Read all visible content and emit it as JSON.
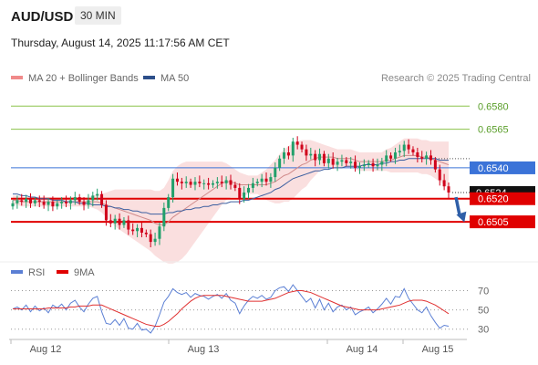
{
  "header": {
    "pair": "AUD/USD",
    "timeframe": "30 MIN",
    "datetime": "Thursday, August 14, 2025 11:17:56 AM CET"
  },
  "legend": {
    "ma20_label": "MA 20 + Bollinger Bands",
    "ma50_label": "MA 50",
    "credit": "Research © 2025 Trading Central",
    "rsi_label": "RSI",
    "ma9_label": "9MA"
  },
  "colors": {
    "candle_up": "#22a06b",
    "candle_down": "#d0021b",
    "bollinger_fill": "#f7c9c9",
    "ma20": "#d08a8a",
    "ma50": "#3c5fa0",
    "resistance": "#8bc34a",
    "pivot": "#3b73d8",
    "support": "#e00000",
    "last_price": "#111111",
    "rsi": "#5b7fd4",
    "rsi_ma": "#e03030",
    "arrow": "#2f5fa8"
  },
  "chart_data": [
    {
      "type": "candlestick",
      "x_labels": [
        "Aug 12",
        "Aug 13",
        "Aug 14",
        "Aug 15"
      ],
      "ylim": [
        0.6482,
        0.6592
      ],
      "levels": [
        {
          "role": "resistance",
          "value": 0.658,
          "label": "0.6580"
        },
        {
          "role": "resistance",
          "value": 0.6565,
          "label": "0.6565"
        },
        {
          "role": "pivot",
          "value": 0.654,
          "label": "0.6540"
        },
        {
          "role": "last",
          "value": 0.6524,
          "label": "0.6524"
        },
        {
          "role": "support",
          "value": 0.652,
          "label": "0.6520"
        },
        {
          "role": "support",
          "value": 0.6505,
          "label": "0.6505"
        }
      ],
      "closes": [
        0.6517,
        0.6519,
        0.6518,
        0.652,
        0.6517,
        0.6519,
        0.6518,
        0.6516,
        0.6518,
        0.6515,
        0.6517,
        0.6518,
        0.6517,
        0.6519,
        0.6521,
        0.6518,
        0.6516,
        0.6519,
        0.6522,
        0.6523,
        0.6516,
        0.6506,
        0.6504,
        0.6507,
        0.6503,
        0.6506,
        0.65,
        0.6499,
        0.6501,
        0.6498,
        0.6497,
        0.6492,
        0.6494,
        0.6502,
        0.6514,
        0.6521,
        0.6533,
        0.6531,
        0.653,
        0.6531,
        0.6529,
        0.6531,
        0.653,
        0.653,
        0.6529,
        0.653,
        0.6531,
        0.653,
        0.6532,
        0.6529,
        0.6527,
        0.652,
        0.6524,
        0.6527,
        0.653,
        0.6531,
        0.6533,
        0.6531,
        0.6534,
        0.654,
        0.6546,
        0.655,
        0.6548,
        0.6557,
        0.6555,
        0.6552,
        0.6548,
        0.6549,
        0.6545,
        0.6549,
        0.6543,
        0.6546,
        0.6542,
        0.6544,
        0.6545,
        0.6543,
        0.6544,
        0.654,
        0.6541,
        0.6542,
        0.6543,
        0.6541,
        0.6542,
        0.6544,
        0.6548,
        0.6546,
        0.655,
        0.6551,
        0.6555,
        0.6552,
        0.655,
        0.6547,
        0.6546,
        0.6548,
        0.6545,
        0.6539,
        0.6532,
        0.6528,
        0.6524
      ],
      "ma20": [
        0.6519,
        0.6519,
        0.6518,
        0.6518,
        0.6518,
        0.6518,
        0.6518,
        0.6518,
        0.6518,
        0.6518,
        0.6518,
        0.6518,
        0.6518,
        0.6518,
        0.6518,
        0.6518,
        0.6518,
        0.6518,
        0.6518,
        0.6518,
        0.6517,
        0.6516,
        0.6515,
        0.6514,
        0.6513,
        0.6512,
        0.6511,
        0.651,
        0.6509,
        0.6508,
        0.6507,
        0.6506,
        0.6504,
        0.6503,
        0.6503,
        0.6505,
        0.6508,
        0.651,
        0.6512,
        0.6514,
        0.6516,
        0.6518,
        0.652,
        0.6522,
        0.6524,
        0.6526,
        0.6528,
        0.653,
        0.6531,
        0.6531,
        0.653,
        0.6529,
        0.6529,
        0.6529,
        0.6529,
        0.6529,
        0.6529,
        0.6529,
        0.653,
        0.6531,
        0.6533,
        0.6535,
        0.6536,
        0.6538,
        0.654,
        0.6542,
        0.6543,
        0.6545,
        0.6546,
        0.6547,
        0.6547,
        0.6547,
        0.6547,
        0.6546,
        0.6546,
        0.6546,
        0.6546,
        0.6545,
        0.6544,
        0.6544,
        0.6544,
        0.6544,
        0.6544,
        0.6544,
        0.6545,
        0.6545,
        0.6546,
        0.6547,
        0.6548,
        0.6548,
        0.6548,
        0.6548,
        0.6547,
        0.6547,
        0.6546,
        0.6545,
        0.6544,
        0.6543,
        0.6542
      ],
      "ma50": [
        0.6523,
        0.6523,
        0.6522,
        0.6522,
        0.6521,
        0.6521,
        0.652,
        0.652,
        0.652,
        0.6519,
        0.6519,
        0.6519,
        0.6518,
        0.6518,
        0.6518,
        0.6517,
        0.6517,
        0.6517,
        0.6516,
        0.6516,
        0.6516,
        0.6515,
        0.6515,
        0.6514,
        0.6514,
        0.6513,
        0.6513,
        0.6512,
        0.6512,
        0.6511,
        0.6511,
        0.651,
        0.651,
        0.651,
        0.651,
        0.6511,
        0.6511,
        0.6512,
        0.6512,
        0.6513,
        0.6513,
        0.6514,
        0.6514,
        0.6515,
        0.6515,
        0.6516,
        0.6516,
        0.6517,
        0.6517,
        0.6518,
        0.6518,
        0.6518,
        0.6519,
        0.6519,
        0.652,
        0.6521,
        0.6522,
        0.6523,
        0.6524,
        0.6526,
        0.6527,
        0.6529,
        0.6531,
        0.6533,
        0.6534,
        0.6535,
        0.6536,
        0.6537,
        0.6538,
        0.6538,
        0.6539,
        0.6539,
        0.654,
        0.654,
        0.654,
        0.6541,
        0.6541,
        0.6541,
        0.6541,
        0.6542,
        0.6542,
        0.6542,
        0.6542,
        0.6543,
        0.6543,
        0.6544,
        0.6544,
        0.6545,
        0.6545,
        0.6546,
        0.6546,
        0.6546,
        0.6546,
        0.6546,
        0.6546,
        0.6546,
        0.6545,
        0.6545,
        0.6545
      ],
      "bb_width": [
        0.0003,
        0.0003,
        0.0003,
        0.0003,
        0.0003,
        0.0003,
        0.0003,
        0.0003,
        0.0003,
        0.0003,
        0.0003,
        0.0003,
        0.0003,
        0.0003,
        0.0003,
        0.0003,
        0.0003,
        0.0003,
        0.0004,
        0.0005,
        0.0006,
        0.0008,
        0.001,
        0.0012,
        0.0013,
        0.0014,
        0.0015,
        0.0016,
        0.0017,
        0.0018,
        0.0019,
        0.002,
        0.0021,
        0.0022,
        0.0024,
        0.0027,
        0.003,
        0.0031,
        0.0031,
        0.003,
        0.0028,
        0.0026,
        0.0024,
        0.0022,
        0.002,
        0.0018,
        0.0016,
        0.0014,
        0.0012,
        0.001,
        0.0009,
        0.0008,
        0.0007,
        0.0006,
        0.0006,
        0.0006,
        0.0008,
        0.001,
        0.0012,
        0.0014,
        0.0016,
        0.0017,
        0.0018,
        0.0018,
        0.0017,
        0.0016,
        0.0015,
        0.0013,
        0.0011,
        0.0009,
        0.0008,
        0.0007,
        0.0006,
        0.0006,
        0.0006,
        0.0006,
        0.0006,
        0.0006,
        0.0006,
        0.0006,
        0.0006,
        0.0006,
        0.0006,
        0.0006,
        0.0007,
        0.0008,
        0.0009,
        0.001,
        0.0011,
        0.0011,
        0.0011,
        0.0011,
        0.0011,
        0.0011,
        0.0011,
        0.0012,
        0.0013,
        0.0014,
        0.0015
      ],
      "projection": {
        "from": 0.6521,
        "to": 0.6507
      }
    },
    {
      "type": "line",
      "name": "RSI",
      "ylim": [
        25,
        78
      ],
      "ticks": [
        30,
        50,
        70
      ],
      "series": [
        {
          "name": "RSI",
          "values": [
            51,
            53,
            50,
            55,
            48,
            54,
            49,
            52,
            47,
            55,
            52,
            56,
            50,
            57,
            60,
            53,
            48,
            56,
            62,
            64,
            48,
            36,
            35,
            40,
            34,
            41,
            31,
            30,
            36,
            29,
            30,
            26,
            33,
            45,
            58,
            64,
            72,
            68,
            66,
            68,
            63,
            67,
            65,
            64,
            61,
            64,
            66,
            62,
            67,
            60,
            57,
            46,
            54,
            60,
            64,
            62,
            65,
            61,
            63,
            70,
            73,
            74,
            69,
            76,
            70,
            64,
            58,
            62,
            52,
            61,
            50,
            57,
            48,
            53,
            55,
            50,
            53,
            45,
            48,
            50,
            53,
            47,
            51,
            56,
            62,
            56,
            64,
            63,
            72,
            62,
            56,
            50,
            47,
            53,
            44,
            37,
            31,
            34,
            33
          ]
        },
        {
          "name": "9MA",
          "values": [
            51,
            51,
            51,
            51,
            51,
            51,
            51,
            51,
            52,
            52,
            52,
            52,
            52,
            53,
            53,
            54,
            54,
            54,
            55,
            55,
            55,
            53,
            51,
            49,
            47,
            45,
            43,
            41,
            39,
            37,
            35,
            34,
            33,
            33,
            35,
            38,
            42,
            46,
            51,
            55,
            59,
            62,
            64,
            65,
            65,
            65,
            65,
            65,
            64,
            63,
            62,
            61,
            60,
            59,
            59,
            59,
            59,
            60,
            61,
            62,
            64,
            66,
            68,
            69,
            70,
            70,
            69,
            68,
            66,
            64,
            62,
            60,
            58,
            56,
            54,
            53,
            52,
            51,
            50,
            50,
            50,
            50,
            50,
            51,
            52,
            53,
            54,
            55,
            57,
            59,
            60,
            60,
            60,
            59,
            57,
            55,
            52,
            49,
            46
          ]
        }
      ]
    }
  ]
}
